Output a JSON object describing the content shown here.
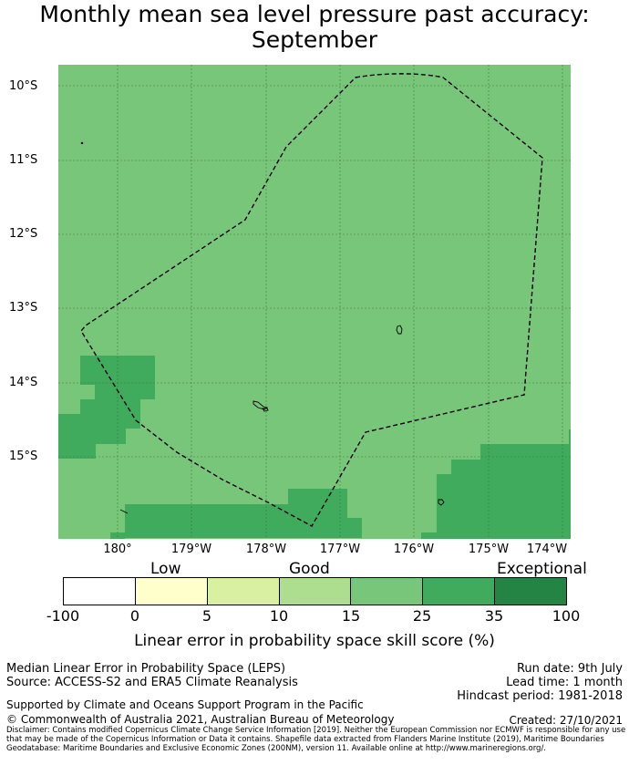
{
  "title": "Monthly mean sea level pressure past accuracy:\nSeptember",
  "title_line1": "Monthly mean sea level pressure past accuracy:",
  "title_line2": "September",
  "map": {
    "lat_labels": [
      "10°S",
      "11°S",
      "12°S",
      "13°S",
      "14°S",
      "15°S"
    ],
    "lon_labels": [
      "180°",
      "179°W",
      "178°W",
      "177°W",
      "176°W",
      "175°W",
      "174°W"
    ],
    "base_color": "#78c679",
    "high_color": "#41ab5d",
    "boundary_style": "dashed"
  },
  "colorbar": {
    "categories": [
      "Low",
      "Good",
      "Exceptional"
    ],
    "ticks": [
      "-100",
      "0",
      "5",
      "10",
      "15",
      "25",
      "35",
      "100"
    ],
    "colors": [
      "#ffffff",
      "#ffffcc",
      "#d9f0a3",
      "#addd8e",
      "#78c679",
      "#41ab5d",
      "#238443"
    ],
    "label": "Linear error in probability space skill score (%)"
  },
  "info": {
    "method": "Median Linear Error in Probability Space (LEPS)",
    "source": "Source: ACCESS-S2 and ERA5 Climate Reanalysis",
    "run_date": "Run date: 9th July",
    "lead_time": "Lead time: 1 month",
    "hindcast": "Hindcast period: 1981-2018",
    "support": "Supported by Climate and Oceans Support Program in the Pacific",
    "copyright": "© Commonwealth of Australia 2021, Australian Bureau of Meteorology",
    "created": "Created: 27/10/2021",
    "disclaimer": "Disclaimer: Contains modified Copernicus Climate Change Service Information [2019]. Neither the European Commission nor ECMWF is responsible for any use that may be made of the Copernicus Information or Data it contains. Shapefile data extracted from Flanders Marine Institute (2019), Maritime Boundaries Geodatabase: Maritime Boundaries and Exclusive Economic Zones (200NM), version 11. Available online at http://www.marineregions.org/."
  }
}
